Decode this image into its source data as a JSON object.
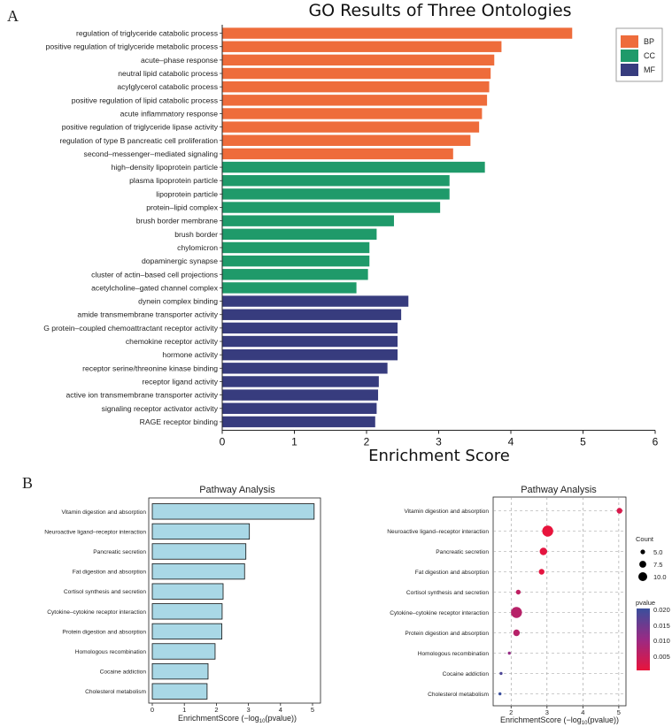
{
  "panel_labels": {
    "a": "A",
    "b": "B"
  },
  "colors": {
    "BP": "#ee6c3b",
    "CC": "#1f9a6a",
    "MF": "#373c7e",
    "bar_b": "#a9d8e6",
    "pval_low": "#e8143c",
    "pval_high": "#3a4f9c"
  },
  "chart_data": [
    {
      "type": "bar",
      "orientation": "horizontal",
      "title": "GO Results of Three Ontologies",
      "xlabel": "Enrichment Score",
      "xlim": [
        0,
        6
      ],
      "xticks": [
        "0",
        "1",
        "2",
        "3",
        "4",
        "5",
        "6"
      ],
      "legend": {
        "position": "top-right",
        "entries": [
          "BP",
          "CC",
          "MF"
        ]
      },
      "categories": [
        "regulation of triglyceride catabolic process",
        "positive regulation of triglyceride metabolic process",
        "acute–phase response",
        "neutral lipid catabolic process",
        "acylglycerol catabolic process",
        "positive regulation of lipid catabolic process",
        "acute inflammatory response",
        "positive regulation of triglyceride lipase activity",
        "regulation of type B pancreatic cell proliferation",
        "second–messenger–mediated signaling",
        "high–density lipoprotein particle",
        "plasma lipoprotein particle",
        "lipoprotein particle",
        "protein–lipid complex",
        "brush border membrane",
        "brush border",
        "chylomicron",
        "dopaminergic synapse",
        "cluster of actin–based cell projections",
        "acetylcholine–gated channel complex",
        "dynein complex binding",
        "amide transmembrane transporter activity",
        "G protein–coupled chemoattractant receptor activity",
        "chemokine receptor activity",
        "hormone activity",
        "receptor serine/threonine kinase binding",
        "receptor ligand activity",
        "active ion transmembrane transporter activity",
        "signaling receptor activator activity",
        "RAGE receptor binding"
      ],
      "values": [
        4.85,
        3.87,
        3.77,
        3.72,
        3.7,
        3.67,
        3.6,
        3.56,
        3.44,
        3.2,
        3.64,
        3.15,
        3.15,
        3.02,
        2.38,
        2.14,
        2.04,
        2.04,
        2.02,
        1.86,
        2.58,
        2.48,
        2.43,
        2.43,
        2.43,
        2.29,
        2.17,
        2.16,
        2.14,
        2.12
      ],
      "groups": [
        "BP",
        "BP",
        "BP",
        "BP",
        "BP",
        "BP",
        "BP",
        "BP",
        "BP",
        "BP",
        "CC",
        "CC",
        "CC",
        "CC",
        "CC",
        "CC",
        "CC",
        "CC",
        "CC",
        "CC",
        "MF",
        "MF",
        "MF",
        "MF",
        "MF",
        "MF",
        "MF",
        "MF",
        "MF",
        "MF"
      ]
    },
    {
      "type": "bar",
      "orientation": "horizontal",
      "title": "Pathway Analysis",
      "xlabel": "EnrichmentScore (−log",
      "xlabel_sub": "10",
      "xlabel_tail": "(pvalue))",
      "xlim": [
        0,
        5.5
      ],
      "xticks": [
        "0",
        "1",
        "2",
        "3",
        "4",
        "5"
      ],
      "categories": [
        "Vitamin digestion and absorption",
        "Neuroactive ligand–receptor interaction",
        "Pancreatic secretion",
        "Fat digestion and absorption",
        "Cortisol synthesis and secretion",
        "Cytokine–cytokine receptor interaction",
        "Protein digestion and absorption",
        "Homologous recombination",
        "Cocaine addiction",
        "Cholesterol metabolism"
      ],
      "values": [
        5.05,
        3.03,
        2.92,
        2.88,
        2.21,
        2.18,
        2.17,
        1.96,
        1.74,
        1.71
      ]
    },
    {
      "type": "scatter",
      "title": "Pathway Analysis",
      "xlabel": "EnrichmentScore (−log",
      "xlabel_sub": "10",
      "xlabel_tail": "(pvalue))",
      "xlim": [
        1.5,
        5.2
      ],
      "xticks": [
        "2",
        "3",
        "4",
        "5"
      ],
      "categories": [
        "Vitamin digestion and absorption",
        "Neuroactive ligand–receptor interaction",
        "Pancreatic secretion",
        "Fat digestion and absorption",
        "Cortisol synthesis and secretion",
        "Cytokine–cytokine receptor interaction",
        "Protein digestion and absorption",
        "Homologous recombination",
        "Cocaine addiction",
        "Cholesterol metabolism"
      ],
      "x": [
        5.02,
        3.02,
        2.9,
        2.85,
        2.2,
        2.15,
        2.15,
        1.95,
        1.72,
        1.69
      ],
      "count": [
        5,
        11,
        7,
        5,
        4,
        11,
        6,
        2,
        2,
        2
      ],
      "pvalue": [
        0.003,
        0.001,
        0.0015,
        0.0015,
        0.006,
        0.007,
        0.007,
        0.011,
        0.018,
        0.02
      ],
      "legend_count": {
        "title": "Count",
        "entries": [
          "5.0",
          "7.5",
          "10.0"
        ]
      },
      "legend_pvalue": {
        "title": "pvalue",
        "entries": [
          "0.020",
          "0.015",
          "0.010",
          "0.005"
        ]
      }
    }
  ]
}
